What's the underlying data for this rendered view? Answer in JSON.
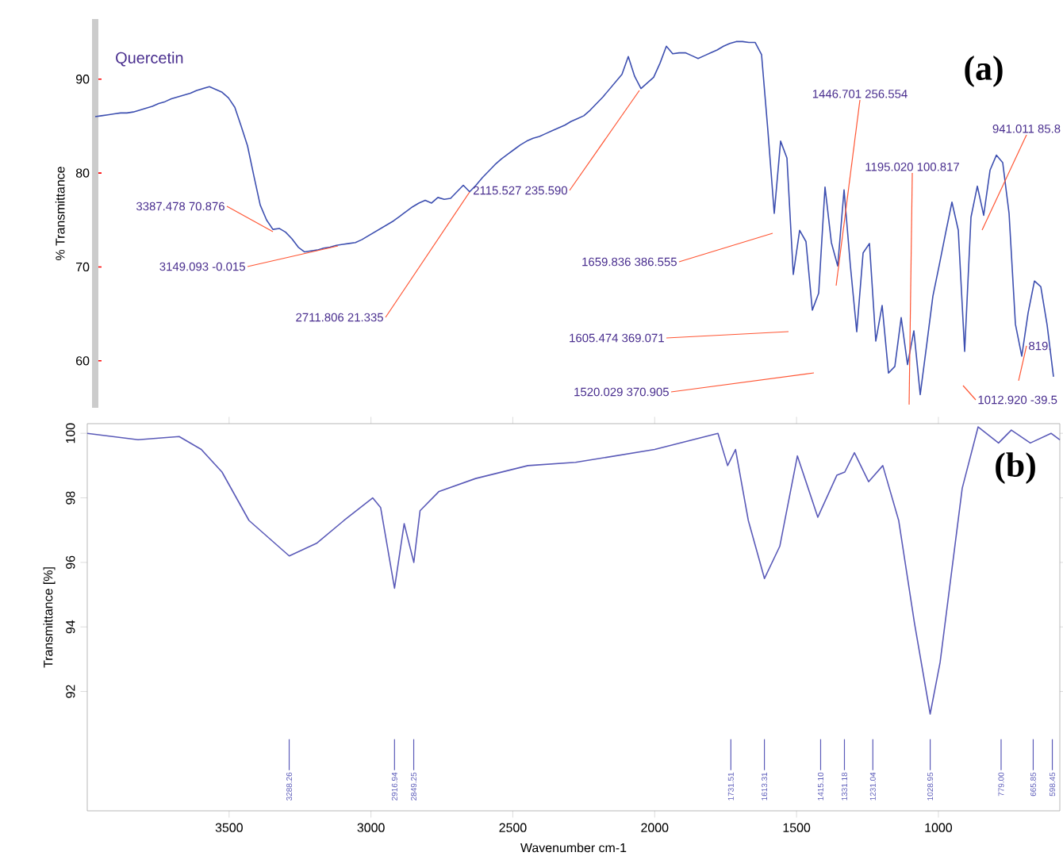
{
  "chart_data": [
    {
      "type": "line",
      "ylabel": "% Transmittance",
      "ylim": [
        55,
        96.4
      ],
      "yticks": [
        60,
        70,
        80,
        90
      ],
      "tick_labels": "y",
      "categories": [
        null,
        null,
        null,
        null,
        null,
        null,
        null,
        null,
        null,
        null,
        null,
        null,
        null,
        null,
        null,
        null,
        null,
        null,
        null,
        null,
        null,
        null,
        null,
        null,
        null,
        null,
        null,
        null,
        null,
        null,
        null,
        null,
        null,
        null,
        null,
        null,
        null,
        null,
        null,
        null,
        null,
        null,
        null,
        null,
        null,
        null,
        null,
        null,
        null,
        null,
        null,
        null,
        null,
        null,
        null,
        null,
        null,
        null,
        null,
        null,
        null,
        null,
        null,
        null,
        null,
        null,
        null,
        null,
        null,
        null,
        null,
        null,
        null,
        null,
        null,
        null,
        null,
        null,
        null,
        null,
        null,
        null,
        null,
        null,
        null,
        null,
        null,
        null,
        null,
        null,
        null,
        null,
        null,
        null,
        null,
        null,
        null,
        null,
        null,
        null,
        null,
        null,
        null,
        null,
        null,
        null,
        null,
        null,
        null,
        null,
        null,
        null,
        null,
        null,
        null,
        null,
        null,
        null,
        null,
        null,
        null,
        null,
        null,
        null,
        null,
        null,
        null,
        null,
        null,
        null,
        null,
        null,
        null,
        null,
        null,
        null,
        null,
        null,
        null,
        null,
        null,
        null,
        null,
        null,
        null,
        null,
        null,
        null,
        null,
        null,
        null,
        null
      ],
      "series": [
        {
          "name": "Quercetin",
          "color": "#3d4fb0",
          "values": [
            86.0,
            86.1,
            86.2,
            86.3,
            86.4,
            86.4,
            86.5,
            86.7,
            86.9,
            87.1,
            87.4,
            87.6,
            87.9,
            88.1,
            88.3,
            88.5,
            88.8,
            89.0,
            89.2,
            88.9,
            88.6,
            88.0,
            87.0,
            85.0,
            82.9,
            79.7,
            76.6,
            75.0,
            74.0,
            74.1,
            73.7,
            73.0,
            72.1,
            71.6,
            71.7,
            71.8,
            72.0,
            72.1,
            72.3,
            72.4,
            72.5,
            72.6,
            72.9,
            73.3,
            73.7,
            74.1,
            74.5,
            74.9,
            75.4,
            75.9,
            76.4,
            76.8,
            77.1,
            76.8,
            77.4,
            77.2,
            77.3,
            78.0,
            78.7,
            78.0,
            78.7,
            79.5,
            80.2,
            80.9,
            81.5,
            82.0,
            82.5,
            83.0,
            83.4,
            83.7,
            83.9,
            84.2,
            84.5,
            84.8,
            85.1,
            85.5,
            85.8,
            86.1,
            86.7,
            87.4,
            88.1,
            88.9,
            89.7,
            90.5,
            92.4,
            90.3,
            89.0,
            89.6,
            90.2,
            91.7,
            93.5,
            92.7,
            92.8,
            92.8,
            92.5,
            92.2,
            92.5,
            92.8,
            93.1,
            93.5,
            93.8,
            94.0,
            94.0,
            93.9,
            93.9,
            92.6,
            84.5,
            75.7,
            83.4,
            81.6,
            69.2,
            73.9,
            72.7,
            65.4,
            67.2,
            78.5,
            72.6,
            70.1,
            78.2,
            70.1,
            63.1,
            71.5,
            72.5,
            62.1,
            65.9,
            58.7,
            59.4,
            64.6,
            59.6,
            63.2,
            56.4,
            61.6,
            66.9,
            70.2,
            73.6,
            76.9,
            73.9,
            61.0,
            75.3,
            78.6,
            75.5,
            80.3,
            81.9,
            81.1,
            75.7,
            63.9,
            60.5,
            65.1,
            68.5,
            67.9,
            63.8,
            58.3
          ]
        }
      ],
      "annotations": [
        "3387.478  70.876",
        "3149.093  -0.015",
        "2711.806  21.335",
        "2115.527  235.590",
        "1659.836  386.555",
        "1605.474  369.071",
        "1520.029  370.905",
        "1446.701  256.554",
        "1195.020  100.817",
        "941.011  85.8",
        "1012.920  -39.5",
        "819.",
        "(a)"
      ]
    },
    {
      "type": "line",
      "xlabel": "Wavenumber cm-1",
      "ylabel": "Transmittance [%]",
      "xlim": [
        4000,
        572
      ],
      "xticks": [
        3500,
        3000,
        2500,
        2000,
        1500,
        1000
      ],
      "ylim": [
        88.3,
        100.3
      ],
      "yticks": [
        92,
        94,
        96,
        98,
        100
      ],
      "series": [
        {
          "color": "#5a5ab8",
          "x": [
            4000,
            3821,
            3676,
            3598,
            3525,
            3430,
            3288,
            3190,
            3095,
            2994,
            2966,
            2917,
            2883,
            2849,
            2827,
            2760,
            2631,
            2447,
            2279,
            2000,
            1777,
            1743,
            1715,
            1670,
            1613,
            1559,
            1497,
            1425,
            1358,
            1330,
            1296,
            1246,
            1196,
            1140,
            1084,
            1029,
            994,
            916,
            860,
            788,
            743,
            676,
            603,
            572
          ],
          "values": [
            100.0,
            99.8,
            99.9,
            99.5,
            98.8,
            97.3,
            96.2,
            96.6,
            97.3,
            98.0,
            97.7,
            95.2,
            97.2,
            96.0,
            97.6,
            98.2,
            98.6,
            99.0,
            99.1,
            99.5,
            100.0,
            99.0,
            99.5,
            97.3,
            95.5,
            96.5,
            99.3,
            97.4,
            98.7,
            98.8,
            99.4,
            98.5,
            99.0,
            97.3,
            94.1,
            91.3,
            92.9,
            98.3,
            100.2,
            99.7,
            100.1,
            99.7,
            100.0,
            99.8
          ]
        }
      ],
      "annotations": [
        {
          "text": "3288.26",
          "x": 3288.26
        },
        {
          "text": "2916.94",
          "x": 2916.94
        },
        {
          "text": "2849.25",
          "x": 2849.25
        },
        {
          "text": "1731.51",
          "x": 1731.51
        },
        {
          "text": "1613.31",
          "x": 1613.31
        },
        {
          "text": "1415.10",
          "x": 1415.1
        },
        {
          "text": "1331.18",
          "x": 1331.18
        },
        {
          "text": "1231.04",
          "x": 1231.04
        },
        {
          "text": "1028.95",
          "x": 1028.95
        },
        {
          "text": "779.00",
          "x": 779.0
        },
        {
          "text": "665.85",
          "x": 665.85
        },
        {
          "text": "598.45",
          "x": 598.45
        },
        "(b)"
      ]
    }
  ]
}
